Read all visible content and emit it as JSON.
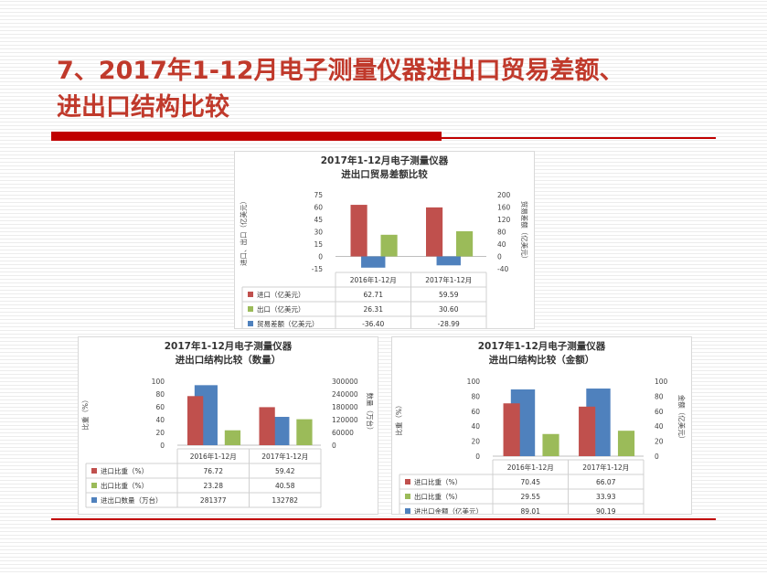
{
  "slide": {
    "title_line1": "7、2017年1-12月电子测量仪器进出口贸易差额、",
    "title_line2": "进出口结构比较"
  },
  "colors": {
    "accent": "#c00000",
    "series_red": "#c0504d",
    "series_green": "#9bbb59",
    "series_blue": "#4f81bd"
  },
  "chart_data": [
    {
      "type": "bar",
      "title_lines": [
        "2017年1-12月电子测量仪器",
        "进出口贸易差额比较"
      ],
      "categories": [
        "2016年1-12月",
        "2017年1-12月"
      ],
      "ylabel": "进口、出口（亿美元）",
      "y2label": "贸易差额（亿美元）",
      "ylim": [
        -15,
        75
      ],
      "y2lim": [
        -40,
        200
      ],
      "yticks": [
        "75",
        "60",
        "45",
        "30",
        "15",
        "0",
        "-15"
      ],
      "y2ticks": [
        "200",
        "160",
        "120",
        "80",
        "40",
        "0",
        "-40"
      ],
      "series": [
        {
          "name": "进口（亿美元）",
          "values": [
            62.71,
            59.59
          ],
          "axis": "left",
          "color": "#c0504d",
          "labels": [
            "62.71",
            "59.59"
          ]
        },
        {
          "name": "出口（亿美元）",
          "values": [
            26.31,
            30.6
          ],
          "axis": "left",
          "color": "#9bbb59",
          "labels": [
            "26.31",
            "30.60"
          ]
        },
        {
          "name": "贸易差额（亿美元）",
          "values": [
            -36.4,
            -28.99
          ],
          "axis": "right",
          "color": "#4f81bd",
          "labels": [
            "-36.40",
            "-28.99"
          ]
        }
      ],
      "legend": "data-table"
    },
    {
      "type": "bar",
      "title_lines": [
        "2017年1-12月电子测量仪器",
        "进出口结构比较（数量）"
      ],
      "categories": [
        "2016年1-12月",
        "2017年1-12月"
      ],
      "ylabel": "比重（%）",
      "y2label": "数量（万台）",
      "ylim": [
        0,
        100
      ],
      "y2lim": [
        0,
        300000
      ],
      "yticks": [
        "100",
        "80",
        "60",
        "40",
        "20",
        "0"
      ],
      "y2ticks": [
        "300000",
        "240000",
        "180000",
        "120000",
        "60000",
        "0"
      ],
      "series": [
        {
          "name": "进口比重（%）",
          "values": [
            76.72,
            59.42
          ],
          "axis": "left",
          "color": "#c0504d",
          "labels": [
            "76.72",
            "59.42"
          ]
        },
        {
          "name": "出口比重（%）",
          "values": [
            23.28,
            40.58
          ],
          "axis": "left",
          "color": "#9bbb59",
          "labels": [
            "23.28",
            "40.58"
          ]
        },
        {
          "name": "进出口数量（万台）",
          "values": [
            281377,
            132782
          ],
          "axis": "right",
          "color": "#4f81bd",
          "labels": [
            "281377",
            "132782"
          ]
        }
      ],
      "legend": "data-table"
    },
    {
      "type": "bar",
      "title_lines": [
        "2017年1-12月电子测量仪器",
        "进出口结构比较（金额）"
      ],
      "categories": [
        "2016年1-12月",
        "2017年1-12月"
      ],
      "ylabel": "比重（%）",
      "y2label": "金额（亿美元）",
      "ylim": [
        0,
        100
      ],
      "y2lim": [
        0,
        100
      ],
      "yticks": [
        "100",
        "80",
        "60",
        "40",
        "20",
        "0"
      ],
      "y2ticks": [
        "100",
        "80",
        "60",
        "40",
        "20",
        "0"
      ],
      "series": [
        {
          "name": "进口比重（%）",
          "values": [
            70.45,
            66.07
          ],
          "axis": "left",
          "color": "#c0504d",
          "labels": [
            "70.45",
            "66.07"
          ]
        },
        {
          "name": "出口比重（%）",
          "values": [
            29.55,
            33.93
          ],
          "axis": "left",
          "color": "#9bbb59",
          "labels": [
            "29.55",
            "33.93"
          ]
        },
        {
          "name": "进出口金额（亿美元）",
          "values": [
            89.01,
            90.19
          ],
          "axis": "right",
          "color": "#4f81bd",
          "labels": [
            "89.01",
            "90.19"
          ]
        }
      ],
      "legend": "data-table"
    }
  ]
}
